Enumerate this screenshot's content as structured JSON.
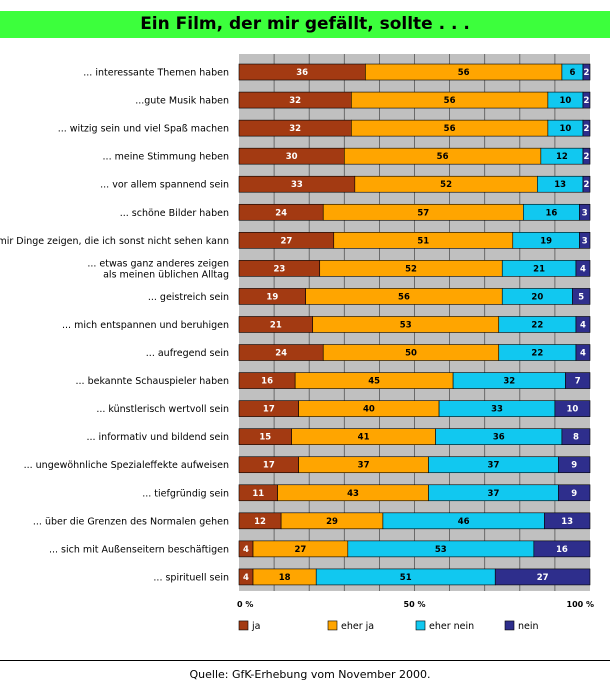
{
  "title": "Ein Film, der mir gefällt, sollte . . .",
  "source": "Quelle: GfK-Erhebung vom November 2000.",
  "colors": {
    "ja": "#a33a12",
    "eher_ja": "#ffa500",
    "eher_nein": "#11c8f0",
    "nein": "#2e2e8c",
    "plot_bg": "#c0c0c0",
    "title_bg": "#3cff3c"
  },
  "chart_data": {
    "type": "bar",
    "orientation": "horizontal",
    "stacked": true,
    "xlim": [
      0,
      100
    ],
    "grid": true,
    "legend_position": "bottom",
    "x_ticks": [
      "0 %",
      "50 %",
      "100 %"
    ],
    "categories": [
      [
        "... interessante Themen haben"
      ],
      [
        "...gute Musik haben"
      ],
      [
        "... witzig sein und viel Spaß machen"
      ],
      [
        "... meine Stimmung heben"
      ],
      [
        "... vor allem spannend sein"
      ],
      [
        "... schöne Bilder haben"
      ],
      [
        "... mir Dinge zeigen, die ich sonst nicht sehen kann"
      ],
      [
        "... etwas ganz anderes zeigen",
        "als meinen üblichen Alltag"
      ],
      [
        "... geistreich sein"
      ],
      [
        "... mich entspannen und beruhigen"
      ],
      [
        "... aufregend sein"
      ],
      [
        "... bekannte Schauspieler haben"
      ],
      [
        "... künstlerisch wertvoll sein"
      ],
      [
        "... informativ und bildend sein"
      ],
      [
        "... ungewöhnliche Spezialeffekte aufweisen"
      ],
      [
        "... tiefgründig sein"
      ],
      [
        "... über die Grenzen des Normalen gehen"
      ],
      [
        "... sich mit Außenseitern beschäftigen"
      ],
      [
        "... spirituell sein"
      ]
    ],
    "series": [
      {
        "name": "ja",
        "values": [
          36,
          32,
          32,
          30,
          33,
          24,
          27,
          23,
          19,
          21,
          24,
          16,
          17,
          15,
          17,
          11,
          12,
          4,
          4
        ]
      },
      {
        "name": "eher ja",
        "values": [
          56,
          56,
          56,
          56,
          52,
          57,
          51,
          52,
          56,
          53,
          50,
          45,
          40,
          41,
          37,
          43,
          29,
          27,
          18
        ]
      },
      {
        "name": "eher nein",
        "values": [
          6,
          10,
          10,
          12,
          13,
          16,
          19,
          21,
          20,
          22,
          22,
          32,
          33,
          36,
          37,
          37,
          46,
          53,
          51
        ]
      },
      {
        "name": "nein",
        "values": [
          2,
          2,
          2,
          2,
          2,
          3,
          3,
          4,
          5,
          4,
          4,
          7,
          10,
          8,
          9,
          9,
          13,
          16,
          27
        ]
      }
    ]
  }
}
